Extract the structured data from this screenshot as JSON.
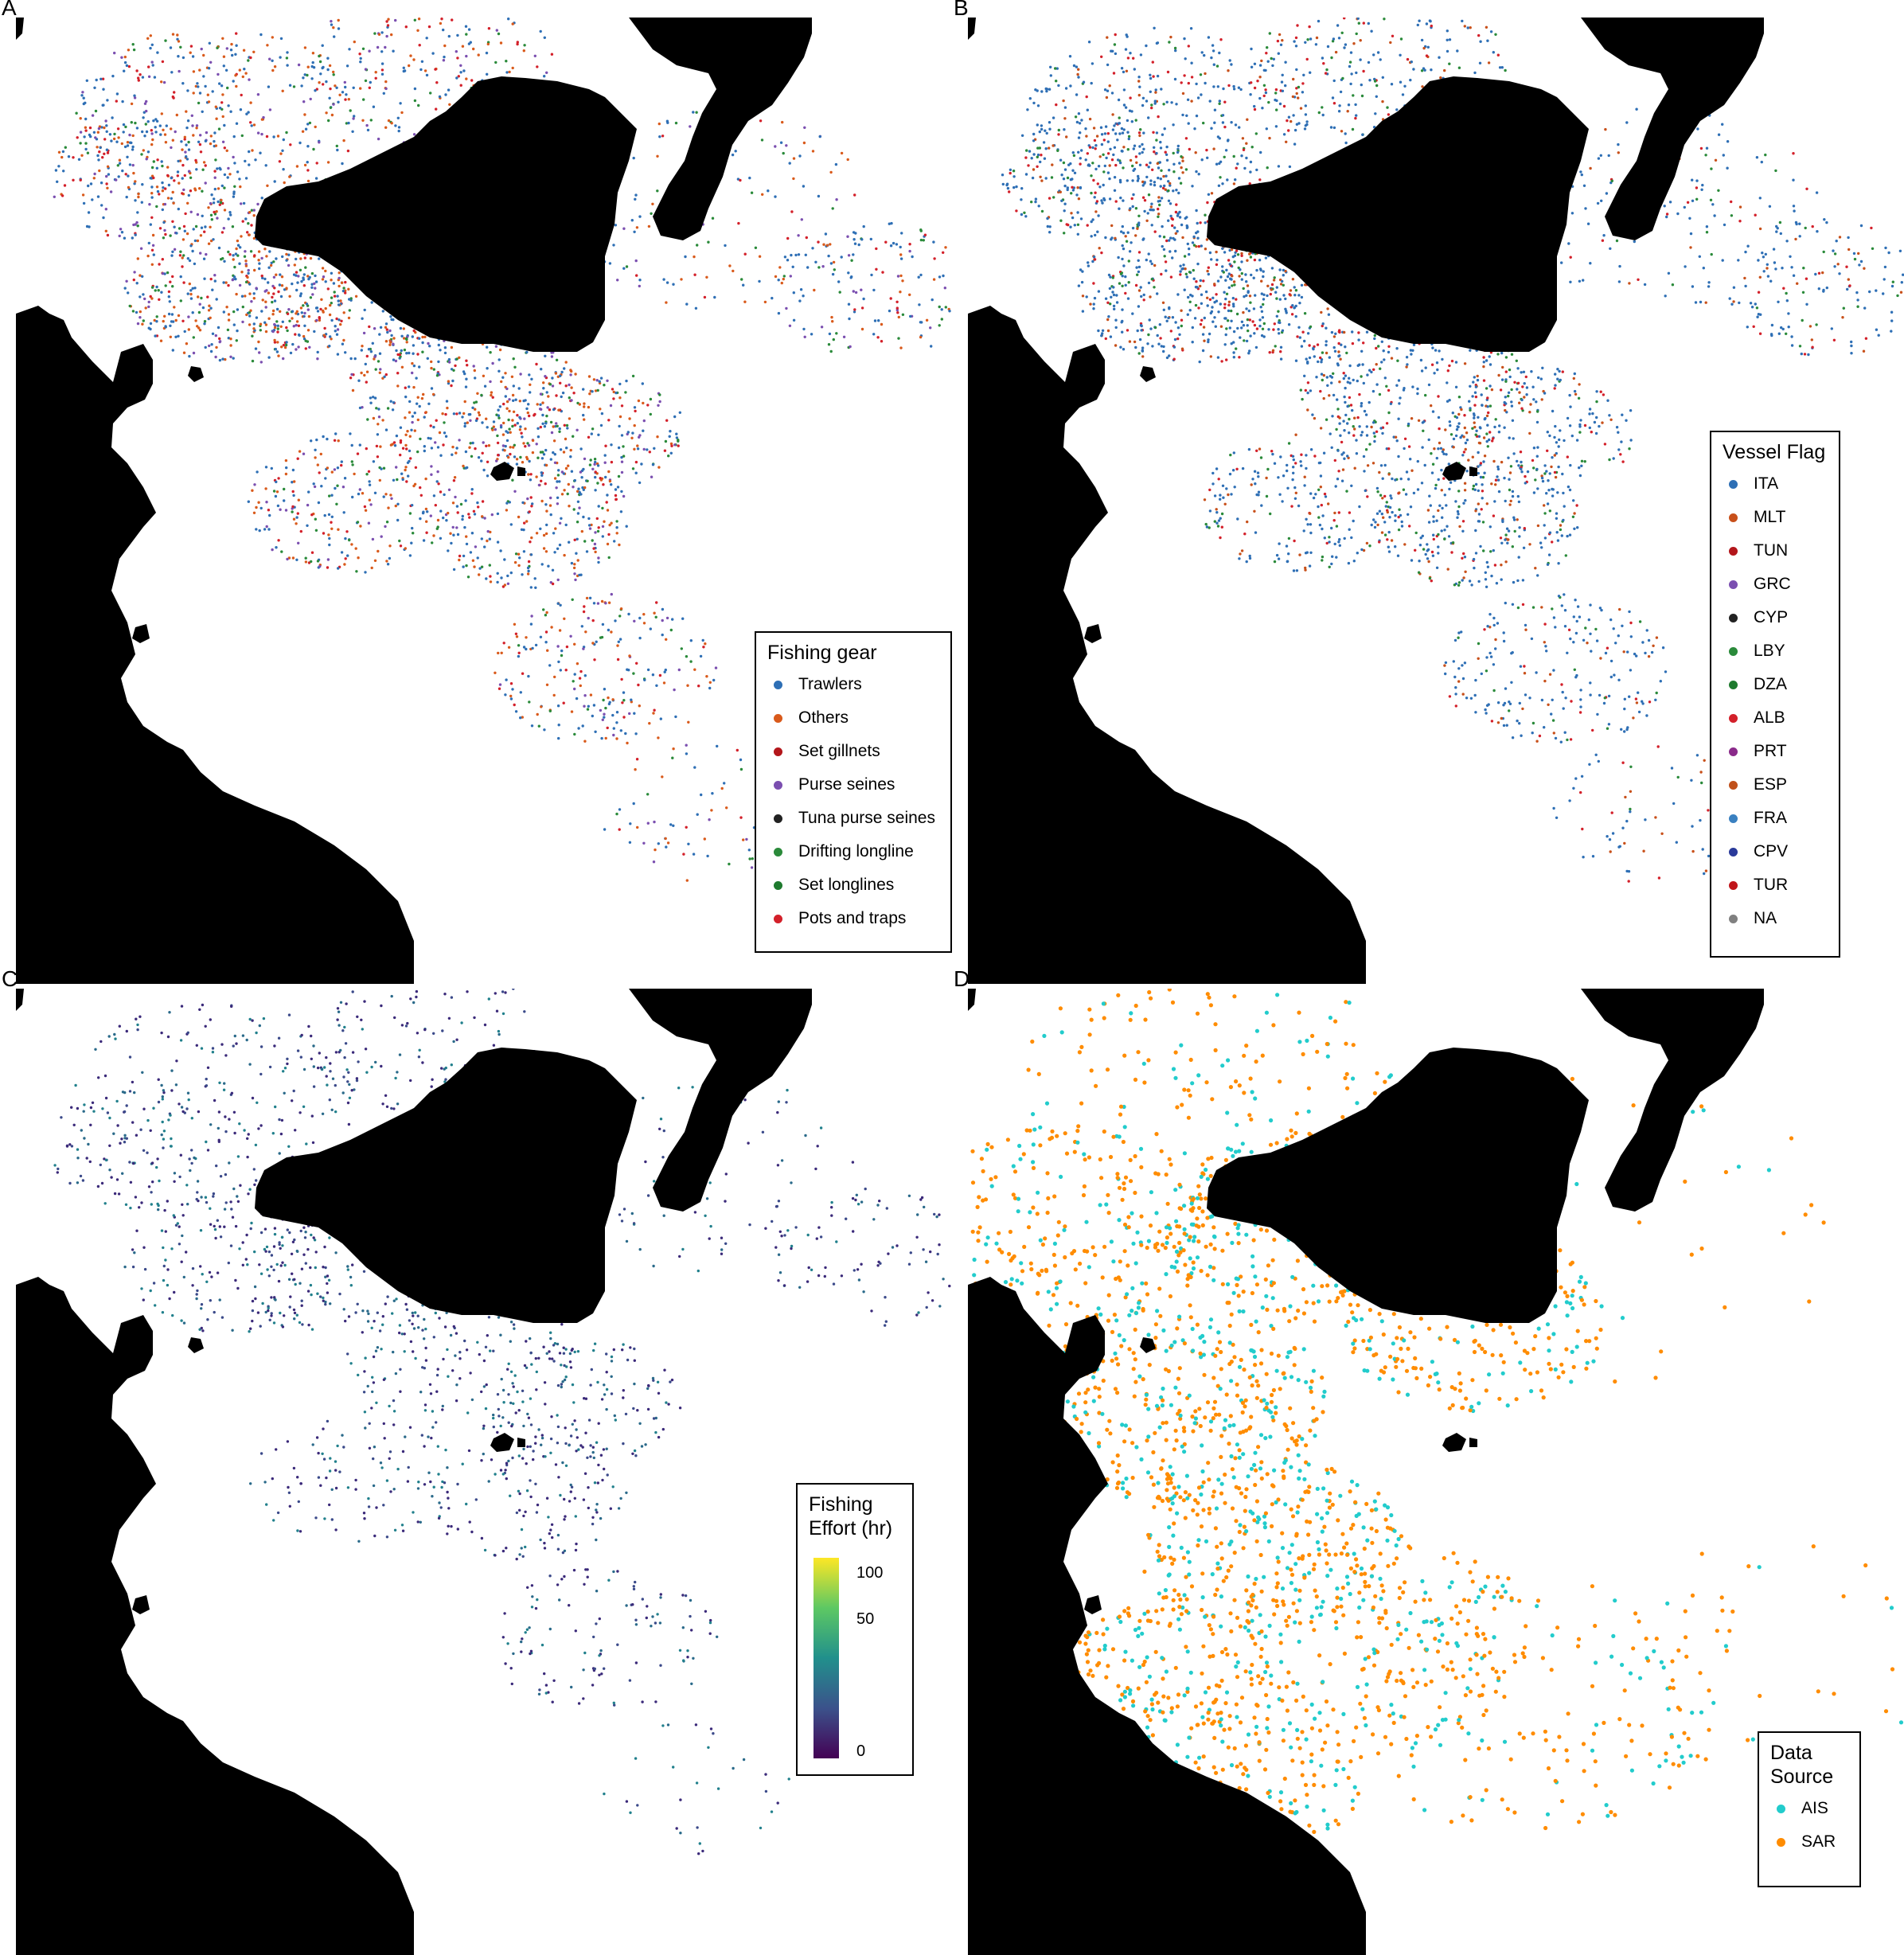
{
  "panels": [
    {
      "label": "A",
      "points_key": "gear"
    },
    {
      "label": "B",
      "points_key": "flag"
    },
    {
      "label": "C",
      "points_key": "effort"
    },
    {
      "label": "D",
      "points_key": "source"
    }
  ],
  "colors": {
    "land": "#000000",
    "sea": "#ffffff"
  },
  "legends": {
    "gear": {
      "title": "Fishing gear",
      "items": [
        {
          "label": "Trawlers",
          "color": "#2e6fb5"
        },
        {
          "label": "Others",
          "color": "#d95a1b"
        },
        {
          "label": "Set gillnets",
          "color": "#b3161b"
        },
        {
          "label": "Purse seines",
          "color": "#7b4fb0"
        },
        {
          "label": "Tuna purse seines",
          "color": "#222222"
        },
        {
          "label": "Drifting longline",
          "color": "#2a8a3a"
        },
        {
          "label": "Set longlines",
          "color": "#1e7a2e"
        },
        {
          "label": "Pots and traps",
          "color": "#d3202a"
        }
      ]
    },
    "flag": {
      "title": "Vessel Flag",
      "items": [
        {
          "label": "ITA",
          "color": "#2e6fb5"
        },
        {
          "label": "MLT",
          "color": "#c8501a"
        },
        {
          "label": "TUN",
          "color": "#b3161b"
        },
        {
          "label": "GRC",
          "color": "#7b4fb0"
        },
        {
          "label": "CYP",
          "color": "#222222"
        },
        {
          "label": "LBY",
          "color": "#2a8a3a"
        },
        {
          "label": "DZA",
          "color": "#1e7a2e"
        },
        {
          "label": "ALB",
          "color": "#d3202a"
        },
        {
          "label": "PRT",
          "color": "#8a2a8a"
        },
        {
          "label": "ESP",
          "color": "#c0501a"
        },
        {
          "label": "FRA",
          "color": "#3a80c0"
        },
        {
          "label": "CPV",
          "color": "#2a3a9a"
        },
        {
          "label": "TUR",
          "color": "#c0161b"
        },
        {
          "label": "NA",
          "color": "#808080"
        }
      ]
    },
    "effort": {
      "title_line1": "Fishing",
      "title_line2": "Effort (hr)",
      "ticks": [
        "100",
        "50",
        "0"
      ],
      "colors": [
        "#440154",
        "#3b528b",
        "#21908c",
        "#5dc863",
        "#fde725"
      ]
    },
    "source": {
      "title_line1": "Data",
      "title_line2": "Source",
      "items": [
        {
          "label": "AIS",
          "color": "#22cccc"
        },
        {
          "label": "SAR",
          "color": "#ff8c00"
        }
      ]
    }
  },
  "point_colors": {
    "gear": [
      "#2e6fb5",
      "#2e6fb5",
      "#2e6fb5",
      "#d95a1b",
      "#d95a1b",
      "#d3202a",
      "#7b4fb0",
      "#2a8a3a"
    ],
    "flag": [
      "#2e6fb5",
      "#2e6fb5",
      "#2e6fb5",
      "#2e6fb5",
      "#2e6fb5",
      "#c8501a",
      "#d3202a",
      "#2a8a3a"
    ],
    "effort": [
      "#3b2a7a",
      "#3b2a7a",
      "#3b4a8a",
      "#2a6a8a",
      "#21808c"
    ],
    "source": [
      "#22cccc",
      "#ff8c00",
      "#ff8c00"
    ]
  }
}
